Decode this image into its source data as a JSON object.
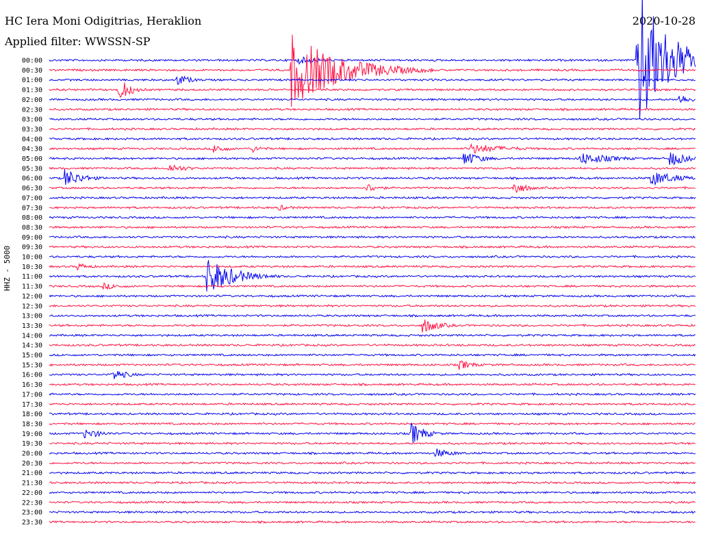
{
  "header": {
    "station": "HC Iera Moni Odigitrias, Heraklion",
    "filter": "Applied filter: WWSSN-SP",
    "date": "2020-10-28"
  },
  "chart_data": {
    "type": "line",
    "ylabel": "HHZ - 5000",
    "row_labels": [
      "00:00",
      "00:30",
      "01:00",
      "01:30",
      "02:00",
      "02:30",
      "03:00",
      "03:30",
      "04:00",
      "04:30",
      "05:00",
      "05:30",
      "06:00",
      "06:30",
      "07:00",
      "07:30",
      "08:00",
      "08:30",
      "09:00",
      "09:30",
      "10:00",
      "10:30",
      "11:00",
      "11:30",
      "12:00",
      "12:30",
      "13:00",
      "13:30",
      "14:00",
      "14:30",
      "15:00",
      "15:30",
      "16:00",
      "16:30",
      "17:00",
      "17:30",
      "18:00",
      "18:30",
      "19:00",
      "19:30",
      "20:00",
      "20:30",
      "21:00",
      "21:30",
      "22:00",
      "22:30",
      "23:00",
      "23:30"
    ],
    "colors": {
      "even": "#0000ee",
      "odd": "#ff1040",
      "text": "#000000"
    },
    "events": [
      {
        "row": 0,
        "minute": 27.3,
        "amp": 120,
        "dur": 1.3
      },
      {
        "row": 0,
        "minute": 11.5,
        "amp": 6,
        "dur": 1.2
      },
      {
        "row": 1,
        "minute": 11.2,
        "amp": 55,
        "dur": 2.2
      },
      {
        "row": 2,
        "minute": 5.9,
        "amp": 10,
        "dur": 0.6
      },
      {
        "row": 3,
        "minute": 3.2,
        "amp": 20,
        "dur": 0.5
      },
      {
        "row": 4,
        "minute": 29.2,
        "amp": 10,
        "dur": 0.5
      },
      {
        "row": 9,
        "minute": 7.6,
        "amp": 8,
        "dur": 0.6
      },
      {
        "row": 9,
        "minute": 9.4,
        "amp": 6,
        "dur": 0.6
      },
      {
        "row": 9,
        "minute": 19.5,
        "amp": 8,
        "dur": 1.8
      },
      {
        "row": 10,
        "minute": 19.2,
        "amp": 12,
        "dur": 0.8
      },
      {
        "row": 10,
        "minute": 24.6,
        "amp": 10,
        "dur": 1.5
      },
      {
        "row": 10,
        "minute": 28.8,
        "amp": 12,
        "dur": 0.8
      },
      {
        "row": 11,
        "minute": 5.5,
        "amp": 8,
        "dur": 0.8
      },
      {
        "row": 12,
        "minute": 0.7,
        "amp": 15,
        "dur": 0.8
      },
      {
        "row": 12,
        "minute": 27.9,
        "amp": 12,
        "dur": 1.2
      },
      {
        "row": 13,
        "minute": 14.7,
        "amp": 8,
        "dur": 0.6
      },
      {
        "row": 13,
        "minute": 21.5,
        "amp": 12,
        "dur": 0.6
      },
      {
        "row": 15,
        "minute": 10.6,
        "amp": 5,
        "dur": 0.7
      },
      {
        "row": 21,
        "minute": 1.3,
        "amp": 6,
        "dur": 0.6
      },
      {
        "row": 22,
        "minute": 7.3,
        "amp": 30,
        "dur": 1.2
      },
      {
        "row": 23,
        "minute": 2.5,
        "amp": 5,
        "dur": 1.0
      },
      {
        "row": 27,
        "minute": 17.3,
        "amp": 12,
        "dur": 0.8
      },
      {
        "row": 31,
        "minute": 19.0,
        "amp": 8,
        "dur": 0.7
      },
      {
        "row": 32,
        "minute": 2.9,
        "amp": 10,
        "dur": 0.7
      },
      {
        "row": 38,
        "minute": 1.6,
        "amp": 8,
        "dur": 0.9
      },
      {
        "row": 38,
        "minute": 16.8,
        "amp": 18,
        "dur": 0.6
      },
      {
        "row": 40,
        "minute": 17.9,
        "amp": 8,
        "dur": 0.8
      }
    ]
  }
}
